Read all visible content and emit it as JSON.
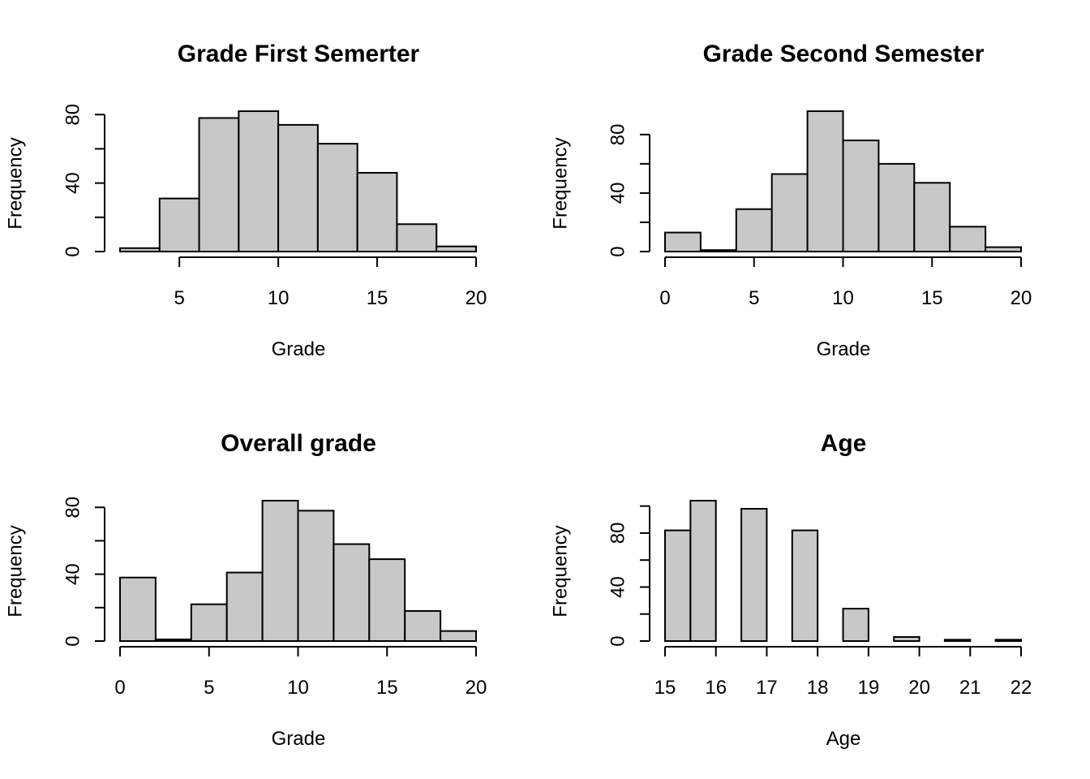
{
  "chart_data": [
    {
      "type": "bar",
      "title": "Grade First Semerter",
      "xlabel": "Grade",
      "ylabel": "Frequency",
      "bins": [
        [
          2,
          4
        ],
        [
          4,
          6
        ],
        [
          6,
          8
        ],
        [
          8,
          10
        ],
        [
          10,
          12
        ],
        [
          12,
          14
        ],
        [
          14,
          16
        ],
        [
          16,
          18
        ],
        [
          18,
          20
        ]
      ],
      "values": [
        2,
        31,
        78,
        82,
        74,
        63,
        46,
        16,
        3
      ],
      "xticks": [
        5,
        10,
        15,
        20
      ],
      "xlim": [
        2,
        20
      ],
      "yticks": [
        0,
        20,
        40,
        60,
        80
      ],
      "ytick_labels": [
        "0",
        "",
        "40",
        "",
        "80"
      ],
      "ylim": [
        0,
        82
      ]
    },
    {
      "type": "bar",
      "title": "Grade Second Semester",
      "xlabel": "Grade",
      "ylabel": "Frequency",
      "bins": [
        [
          0,
          2
        ],
        [
          2,
          4
        ],
        [
          4,
          6
        ],
        [
          6,
          8
        ],
        [
          8,
          10
        ],
        [
          10,
          12
        ],
        [
          12,
          14
        ],
        [
          14,
          16
        ],
        [
          16,
          18
        ],
        [
          18,
          20
        ]
      ],
      "values": [
        13,
        1,
        29,
        53,
        96,
        76,
        60,
        47,
        17,
        3
      ],
      "xticks": [
        0,
        5,
        10,
        15,
        20
      ],
      "xlim": [
        0,
        20
      ],
      "yticks": [
        0,
        20,
        40,
        60,
        80
      ],
      "ytick_labels": [
        "0",
        "",
        "40",
        "",
        "80"
      ],
      "ylim": [
        0,
        96
      ]
    },
    {
      "type": "bar",
      "title": "Overall grade",
      "xlabel": "Grade",
      "ylabel": "Frequency",
      "bins": [
        [
          0,
          2
        ],
        [
          2,
          4
        ],
        [
          4,
          6
        ],
        [
          6,
          8
        ],
        [
          8,
          10
        ],
        [
          10,
          12
        ],
        [
          12,
          14
        ],
        [
          14,
          16
        ],
        [
          16,
          18
        ],
        [
          18,
          20
        ]
      ],
      "values": [
        38,
        1,
        22,
        41,
        84,
        78,
        58,
        49,
        18,
        6
      ],
      "xticks": [
        0,
        5,
        10,
        15,
        20
      ],
      "xlim": [
        0,
        20
      ],
      "yticks": [
        0,
        20,
        40,
        60,
        80
      ],
      "ytick_labels": [
        "0",
        "",
        "40",
        "",
        "80"
      ],
      "ylim": [
        0,
        84
      ]
    },
    {
      "type": "bar",
      "title": "Age",
      "xlabel": "Age",
      "ylabel": "Frequency",
      "bins": [
        [
          15,
          15.5
        ],
        [
          15.5,
          16
        ],
        [
          16,
          16.5
        ],
        [
          16.5,
          17
        ],
        [
          17,
          17.5
        ],
        [
          17.5,
          18
        ],
        [
          18,
          18.5
        ],
        [
          18.5,
          19
        ],
        [
          19,
          19.5
        ],
        [
          19.5,
          20
        ],
        [
          20,
          20.5
        ],
        [
          20.5,
          21
        ],
        [
          21,
          21.5
        ],
        [
          21.5,
          22
        ]
      ],
      "values": [
        82,
        104,
        0,
        98,
        0,
        82,
        0,
        24,
        0,
        3,
        0,
        1,
        0,
        1
      ],
      "xticks": [
        15,
        16,
        17,
        18,
        19,
        20,
        21,
        22
      ],
      "xlim": [
        15,
        22
      ],
      "yticks": [
        0,
        20,
        40,
        60,
        80,
        100
      ],
      "ytick_labels": [
        "0",
        "",
        "40",
        "",
        "80",
        ""
      ],
      "ylim": [
        0,
        104
      ]
    }
  ]
}
